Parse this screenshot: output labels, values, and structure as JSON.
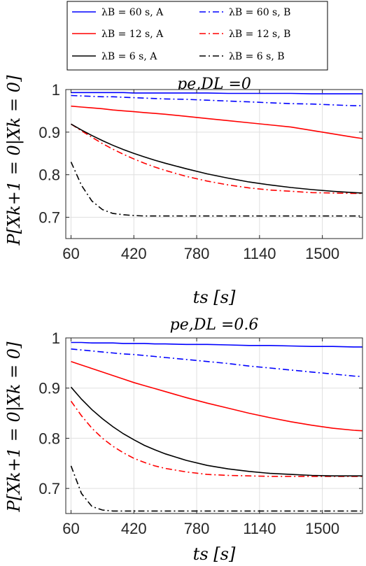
{
  "legend": {
    "entries": [
      {
        "label": "λB = 60 s, A",
        "color": "#0000ff",
        "dash": "solid"
      },
      {
        "label": "λB = 60 s, B",
        "color": "#0000ff",
        "dash": "dashdot"
      },
      {
        "label": "λB = 12 s, A",
        "color": "#ff0000",
        "dash": "solid"
      },
      {
        "label": "λB = 12 s, B",
        "color": "#ff0000",
        "dash": "dashdot"
      },
      {
        "label": "λB = 6 s, A",
        "color": "#000000",
        "dash": "solid"
      },
      {
        "label": "λB = 6 s, B",
        "color": "#000000",
        "dash": "dashdot"
      }
    ]
  },
  "chart_data": [
    {
      "type": "line",
      "title": "pe,DL =0",
      "xlabel": "ts [s]",
      "ylabel": "P[Xk+1 = 0|Xk = 0]",
      "xlim": [
        30,
        1730
      ],
      "ylim": [
        0.65,
        1.0
      ],
      "xticks": [
        60,
        420,
        780,
        1140,
        1500
      ],
      "yticks": [
        0.7,
        0.8,
        0.9,
        1
      ],
      "ytick_labels": [
        "0.7",
        "0.8",
        "0.9",
        "1"
      ],
      "grid": true,
      "x": [
        60,
        120,
        180,
        240,
        300,
        360,
        420,
        480,
        540,
        600,
        720,
        840,
        960,
        1080,
        1200,
        1320,
        1440,
        1560,
        1680,
        1730
      ],
      "series": [
        {
          "name": "λB = 60 s, A",
          "color": "#0000ff",
          "dash": "solid",
          "values": [
            0.993,
            0.993,
            0.993,
            0.993,
            0.993,
            0.993,
            0.992,
            0.992,
            0.992,
            0.992,
            0.992,
            0.992,
            0.991,
            0.991,
            0.991,
            0.991,
            0.99,
            0.99,
            0.99,
            0.99
          ]
        },
        {
          "name": "λB = 60 s, B",
          "color": "#0000ff",
          "dash": "dashdot",
          "values": [
            0.986,
            0.985,
            0.984,
            0.983,
            0.983,
            0.982,
            0.981,
            0.98,
            0.979,
            0.978,
            0.977,
            0.975,
            0.973,
            0.971,
            0.969,
            0.967,
            0.966,
            0.964,
            0.962,
            0.962
          ]
        },
        {
          "name": "λB = 12 s, A",
          "color": "#ff0000",
          "dash": "solid",
          "values": [
            0.961,
            0.959,
            0.957,
            0.955,
            0.952,
            0.95,
            0.948,
            0.946,
            0.944,
            0.942,
            0.937,
            0.932,
            0.927,
            0.922,
            0.917,
            0.912,
            0.904,
            0.896,
            0.888,
            0.885
          ]
        },
        {
          "name": "λB = 12 s, B",
          "color": "#ff0000",
          "dash": "dashdot",
          "values": [
            0.919,
            0.903,
            0.888,
            0.873,
            0.86,
            0.848,
            0.837,
            0.827,
            0.818,
            0.81,
            0.796,
            0.785,
            0.776,
            0.769,
            0.764,
            0.761,
            0.758,
            0.757,
            0.756,
            0.756
          ]
        },
        {
          "name": "λB = 6 s, A",
          "color": "#000000",
          "dash": "solid",
          "values": [
            0.919,
            0.905,
            0.892,
            0.88,
            0.869,
            0.859,
            0.85,
            0.842,
            0.834,
            0.827,
            0.814,
            0.802,
            0.792,
            0.783,
            0.776,
            0.77,
            0.765,
            0.761,
            0.758,
            0.757
          ]
        },
        {
          "name": "λB = 6 s, B",
          "color": "#000000",
          "dash": "dashdot",
          "values": [
            0.83,
            0.775,
            0.738,
            0.718,
            0.709,
            0.706,
            0.704,
            0.703,
            0.703,
            0.703,
            0.703,
            0.703,
            0.703,
            0.703,
            0.703,
            0.703,
            0.703,
            0.703,
            0.703,
            0.703
          ]
        }
      ]
    },
    {
      "type": "line",
      "title": "pe,DL =0.6",
      "xlabel": "ts [s]",
      "ylabel": "P[Xk+1 = 0|Xk = 0]",
      "xlim": [
        30,
        1730
      ],
      "ylim": [
        0.65,
        1.0
      ],
      "xticks": [
        60,
        420,
        780,
        1140,
        1500
      ],
      "yticks": [
        0.7,
        0.8,
        0.9,
        1
      ],
      "ytick_labels": [
        "0.7",
        "0.8",
        "0.9",
        "1"
      ],
      "grid": true,
      "x": [
        60,
        120,
        180,
        240,
        300,
        360,
        420,
        480,
        540,
        600,
        720,
        840,
        960,
        1080,
        1200,
        1320,
        1440,
        1560,
        1680,
        1730
      ],
      "series": [
        {
          "name": "λB = 60 s, A",
          "color": "#0000ff",
          "dash": "solid",
          "values": [
            0.991,
            0.991,
            0.99,
            0.99,
            0.99,
            0.989,
            0.989,
            0.989,
            0.988,
            0.988,
            0.987,
            0.987,
            0.986,
            0.985,
            0.985,
            0.984,
            0.983,
            0.983,
            0.982,
            0.982
          ]
        },
        {
          "name": "λB = 60 s, B",
          "color": "#0000ff",
          "dash": "dashdot",
          "values": [
            0.978,
            0.976,
            0.974,
            0.972,
            0.97,
            0.968,
            0.967,
            0.965,
            0.963,
            0.961,
            0.957,
            0.953,
            0.949,
            0.944,
            0.94,
            0.936,
            0.932,
            0.928,
            0.924,
            0.923
          ]
        },
        {
          "name": "λB = 12 s, A",
          "color": "#ff0000",
          "dash": "solid",
          "values": [
            0.953,
            0.946,
            0.939,
            0.932,
            0.925,
            0.918,
            0.911,
            0.905,
            0.899,
            0.893,
            0.881,
            0.87,
            0.86,
            0.85,
            0.841,
            0.833,
            0.826,
            0.82,
            0.816,
            0.815
          ]
        },
        {
          "name": "λB = 12 s, B",
          "color": "#ff0000",
          "dash": "dashdot",
          "values": [
            0.874,
            0.845,
            0.82,
            0.8,
            0.784,
            0.771,
            0.76,
            0.752,
            0.745,
            0.74,
            0.733,
            0.728,
            0.726,
            0.725,
            0.724,
            0.724,
            0.724,
            0.724,
            0.724,
            0.724
          ]
        },
        {
          "name": "λB = 6 s, A",
          "color": "#000000",
          "dash": "solid",
          "values": [
            0.902,
            0.878,
            0.857,
            0.839,
            0.823,
            0.809,
            0.797,
            0.786,
            0.777,
            0.769,
            0.756,
            0.746,
            0.739,
            0.734,
            0.73,
            0.728,
            0.726,
            0.725,
            0.725,
            0.725
          ]
        },
        {
          "name": "λB = 6 s, B",
          "color": "#000000",
          "dash": "dashdot",
          "values": [
            0.745,
            0.69,
            0.664,
            0.657,
            0.655,
            0.655,
            0.655,
            0.655,
            0.655,
            0.655,
            0.655,
            0.655,
            0.655,
            0.655,
            0.655,
            0.655,
            0.655,
            0.655,
            0.655,
            0.655
          ]
        }
      ]
    }
  ]
}
